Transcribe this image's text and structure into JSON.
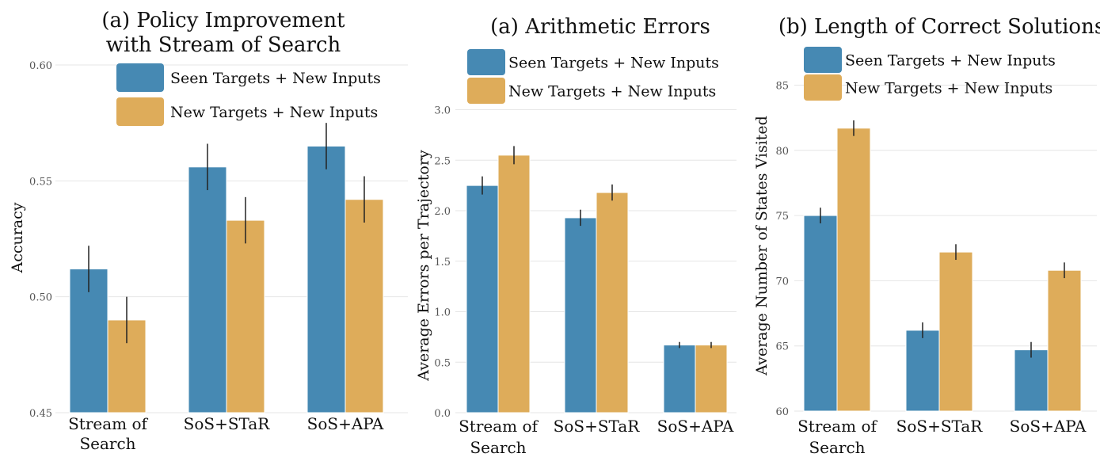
{
  "colors": {
    "seen": "#4689b3",
    "new": "#deac5a",
    "error_bar": "#222222",
    "grid": "#e6e6e6"
  },
  "chart_data": [
    {
      "type": "bar",
      "title": "(a)  Policy Improvement\nwith Stream of Search",
      "xlabel": "",
      "ylabel": "Accuracy",
      "categories": [
        "Stream of Search",
        "SoS+STaR",
        "SoS+APA"
      ],
      "category_labels": [
        "Stream of\nSearch",
        "SoS+STaR",
        "SoS+APA"
      ],
      "ylim": [
        0.45,
        0.6
      ],
      "yticks": [
        0.45,
        0.5,
        0.55,
        0.6
      ],
      "ytick_labels": [
        "0.45",
        "0.50",
        "0.55",
        "0.60"
      ],
      "grid": true,
      "legend_position": "top-center",
      "series": [
        {
          "name": "Seen Targets + New Inputs",
          "color": "seen",
          "values": [
            0.512,
            0.556,
            0.565
          ],
          "errors": [
            0.01,
            0.01,
            0.01
          ]
        },
        {
          "name": "New Targets + New Inputs",
          "color": "new",
          "values": [
            0.49,
            0.533,
            0.542
          ],
          "errors": [
            0.01,
            0.01,
            0.01
          ]
        }
      ]
    },
    {
      "type": "bar",
      "title": "(a) Arithmetic Errors",
      "xlabel": "",
      "ylabel": "Average Errors per Trajectory",
      "categories": [
        "Stream of Search",
        "SoS+STaR",
        "SoS+APA"
      ],
      "category_labels": [
        "Stream of\nSearch",
        "SoS+STaR",
        "SoS+APA"
      ],
      "ylim": [
        0.0,
        3.2
      ],
      "yticks": [
        0.0,
        0.5,
        1.0,
        1.5,
        2.0,
        2.5,
        3.0
      ],
      "ytick_labels": [
        "0.0",
        "0.5",
        "1.0",
        "1.5",
        "2.0",
        "2.5",
        "3.0"
      ],
      "grid": true,
      "legend_position": "top-center",
      "series": [
        {
          "name": "Seen Targets + New Inputs",
          "color": "seen",
          "values": [
            2.25,
            1.93,
            0.67
          ],
          "errors": [
            0.09,
            0.08,
            0.03
          ]
        },
        {
          "name": "New Targets + New Inputs",
          "color": "new",
          "values": [
            2.55,
            2.18,
            0.67
          ],
          "errors": [
            0.09,
            0.08,
            0.03
          ]
        }
      ]
    },
    {
      "type": "bar",
      "title": "(b) Length of Correct Solutions",
      "xlabel": "",
      "ylabel": "Average Number of States Visited",
      "categories": [
        "Stream of Search",
        "SoS+STaR",
        "SoS+APA"
      ],
      "category_labels": [
        "Stream of\nSearch",
        "SoS+STaR",
        "SoS+APA"
      ],
      "ylim": [
        60,
        86
      ],
      "yticks": [
        60,
        65,
        70,
        75,
        80,
        85
      ],
      "ytick_labels": [
        "60",
        "65",
        "70",
        "75",
        "80",
        "85"
      ],
      "grid": true,
      "legend_position": "top-left",
      "series": [
        {
          "name": "Seen Targets + New Inputs",
          "color": "seen",
          "values": [
            75.0,
            66.2,
            64.7
          ],
          "errors": [
            0.6,
            0.6,
            0.6
          ]
        },
        {
          "name": "New Targets + New Inputs",
          "color": "new",
          "values": [
            81.7,
            72.2,
            70.8
          ],
          "errors": [
            0.6,
            0.6,
            0.6
          ]
        }
      ]
    }
  ]
}
